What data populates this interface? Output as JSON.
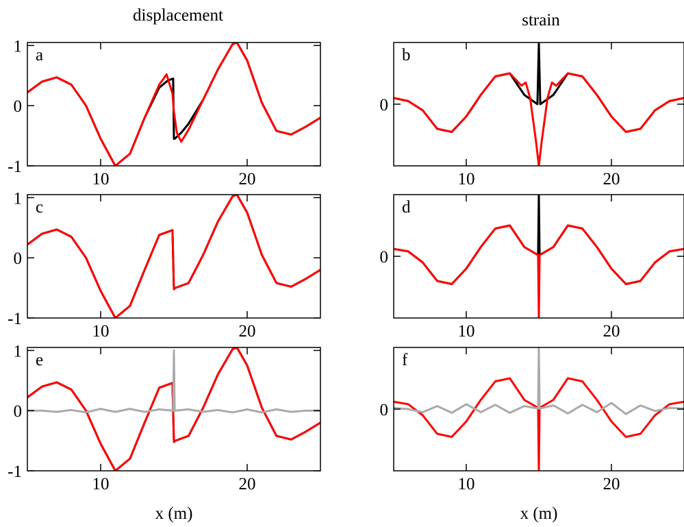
{
  "column_titles": {
    "left": "displacement",
    "right": "strain"
  },
  "colors": {
    "primary": "#000000",
    "comparison": "#ff0000",
    "reference": "#aaaaaa"
  },
  "chart_data": [
    {
      "id": "a",
      "type": "line",
      "panel_label": "a",
      "xlim": [
        5,
        25
      ],
      "ylim": [
        -1,
        1.05
      ],
      "xticks": [
        "10",
        "20"
      ],
      "yticks": [
        "1",
        "0",
        "-1"
      ],
      "xlabel": "",
      "series": [
        {
          "color": "#000000",
          "x": [
            5,
            6,
            7,
            8,
            9,
            10,
            11,
            12,
            13,
            14,
            14.6,
            14.95,
            15.0,
            15.05,
            15.5,
            16,
            17,
            18,
            19,
            19.3,
            20,
            21,
            22,
            23,
            24,
            25
          ],
          "y": [
            0.22,
            0.4,
            0.47,
            0.35,
            0.0,
            -0.55,
            -1.0,
            -0.8,
            -0.2,
            0.3,
            0.42,
            0.45,
            -0.55,
            -0.55,
            -0.45,
            -0.3,
            0.1,
            0.6,
            1.02,
            1.05,
            0.75,
            0.05,
            -0.42,
            -0.48,
            -0.35,
            -0.2
          ]
        },
        {
          "color": "#ff0000",
          "x": [
            5,
            6,
            7,
            8,
            9,
            10,
            11,
            12,
            13,
            14,
            14.5,
            14.9,
            15.0,
            15.2,
            15.5,
            16,
            17,
            18,
            19,
            19.3,
            20,
            21,
            22,
            23,
            24,
            25
          ],
          "y": [
            0.22,
            0.4,
            0.47,
            0.35,
            0.0,
            -0.55,
            -1.0,
            -0.8,
            -0.2,
            0.35,
            0.52,
            0.2,
            -0.1,
            -0.45,
            -0.6,
            -0.4,
            0.1,
            0.6,
            1.02,
            1.05,
            0.75,
            0.05,
            -0.42,
            -0.48,
            -0.35,
            -0.2
          ]
        }
      ]
    },
    {
      "id": "b",
      "type": "line",
      "panel_label": "b",
      "xlim": [
        5,
        25
      ],
      "ylim": [
        -1,
        1
      ],
      "xticks": [
        "10",
        "20"
      ],
      "yticks": [
        "0"
      ],
      "xlabel": "",
      "series": [
        {
          "color": "#000000",
          "x": [
            5,
            6,
            7,
            8,
            9,
            10,
            11,
            12,
            13,
            14,
            14.9,
            15.0,
            15.1,
            16,
            17,
            18,
            19,
            20,
            21,
            22,
            23,
            24,
            25
          ],
          "y": [
            0.1,
            0.05,
            -0.1,
            -0.4,
            -0.45,
            -0.2,
            0.15,
            0.45,
            0.5,
            0.15,
            0.0,
            1.0,
            0.0,
            0.15,
            0.5,
            0.45,
            0.15,
            -0.2,
            -0.45,
            -0.4,
            -0.1,
            0.05,
            0.1
          ]
        },
        {
          "color": "#ff0000",
          "x": [
            5,
            6,
            7,
            8,
            9,
            10,
            11,
            12,
            13,
            13.8,
            14.1,
            14.4,
            14.8,
            15.0,
            15.2,
            15.6,
            15.9,
            16.2,
            17,
            18,
            19,
            20,
            21,
            22,
            23,
            24,
            25
          ],
          "y": [
            0.1,
            0.05,
            -0.1,
            -0.4,
            -0.45,
            -0.2,
            0.15,
            0.45,
            0.5,
            0.3,
            0.35,
            0.1,
            -0.6,
            -1.0,
            -0.6,
            0.1,
            0.35,
            0.3,
            0.5,
            0.45,
            0.15,
            -0.2,
            -0.45,
            -0.4,
            -0.1,
            0.05,
            0.1
          ]
        }
      ]
    },
    {
      "id": "c",
      "type": "line",
      "panel_label": "c",
      "xlim": [
        5,
        25
      ],
      "ylim": [
        -1,
        1.05
      ],
      "xticks": [
        "10",
        "20"
      ],
      "yticks": [
        "1",
        "0",
        "-1"
      ],
      "xlabel": "",
      "series": [
        {
          "color": "#000000",
          "x": [
            5,
            6,
            7,
            8,
            9,
            10,
            11,
            12,
            13,
            14,
            14.9,
            15.0,
            15.1,
            16,
            17,
            18,
            19,
            19.3,
            20,
            21,
            22,
            23,
            24,
            25
          ],
          "y": [
            0.22,
            0.4,
            0.47,
            0.35,
            0.0,
            -0.55,
            -1.0,
            -0.8,
            -0.2,
            0.38,
            0.46,
            -0.52,
            -0.5,
            -0.42,
            0.05,
            0.6,
            1.02,
            1.05,
            0.75,
            0.05,
            -0.42,
            -0.48,
            -0.35,
            -0.2
          ]
        },
        {
          "color": "#ff0000",
          "x": [
            5,
            6,
            7,
            8,
            9,
            10,
            11,
            12,
            13,
            14,
            14.9,
            15.0,
            15.1,
            16,
            17,
            18,
            19,
            19.3,
            20,
            21,
            22,
            23,
            24,
            25
          ],
          "y": [
            0.22,
            0.4,
            0.47,
            0.35,
            0.0,
            -0.55,
            -1.0,
            -0.8,
            -0.2,
            0.38,
            0.46,
            -0.52,
            -0.5,
            -0.42,
            0.05,
            0.6,
            1.02,
            1.05,
            0.75,
            0.05,
            -0.42,
            -0.48,
            -0.35,
            -0.2
          ]
        }
      ]
    },
    {
      "id": "d",
      "type": "line",
      "panel_label": "d",
      "xlim": [
        5,
        25
      ],
      "ylim": [
        -1,
        1
      ],
      "xticks": [
        "10",
        "20"
      ],
      "yticks": [
        "0"
      ],
      "xlabel": "",
      "series": [
        {
          "color": "#000000",
          "x": [
            5,
            6,
            7,
            8,
            9,
            10,
            11,
            12,
            13,
            14,
            14.95,
            15.0,
            15.05,
            16,
            17,
            18,
            19,
            20,
            21,
            22,
            23,
            24,
            25
          ],
          "y": [
            0.12,
            0.08,
            -0.1,
            -0.4,
            -0.45,
            -0.2,
            0.15,
            0.45,
            0.5,
            0.15,
            0.02,
            1.0,
            0.02,
            0.15,
            0.5,
            0.45,
            0.15,
            -0.2,
            -0.45,
            -0.4,
            -0.1,
            0.08,
            0.12
          ]
        },
        {
          "color": "#ff0000",
          "x": [
            5,
            6,
            7,
            8,
            9,
            10,
            11,
            12,
            13,
            14,
            14.95,
            15.0,
            15.05,
            16,
            17,
            18,
            19,
            20,
            21,
            22,
            23,
            24,
            25
          ],
          "y": [
            0.12,
            0.08,
            -0.1,
            -0.4,
            -0.45,
            -0.2,
            0.15,
            0.45,
            0.5,
            0.15,
            0.02,
            -1.0,
            0.02,
            0.15,
            0.5,
            0.45,
            0.15,
            -0.2,
            -0.45,
            -0.4,
            -0.1,
            0.08,
            0.12
          ]
        }
      ]
    },
    {
      "id": "e",
      "type": "line",
      "panel_label": "e",
      "xlim": [
        5,
        25
      ],
      "ylim": [
        -1,
        1.05
      ],
      "xticks": [
        "10",
        "20"
      ],
      "yticks": [
        "1",
        "0",
        "-1"
      ],
      "xlabel": "x (m)",
      "series": [
        {
          "color": "#000000",
          "x": [
            5,
            6,
            7,
            8,
            9,
            10,
            11,
            12,
            13,
            14,
            14.9,
            15.0,
            15.1,
            16,
            17,
            18,
            19,
            19.3,
            20,
            21,
            22,
            23,
            24,
            25
          ],
          "y": [
            0.22,
            0.4,
            0.47,
            0.35,
            0.0,
            -0.55,
            -1.0,
            -0.8,
            -0.2,
            0.38,
            0.46,
            -0.52,
            -0.5,
            -0.42,
            0.05,
            0.6,
            1.02,
            1.05,
            0.75,
            0.05,
            -0.42,
            -0.48,
            -0.35,
            -0.2
          ]
        },
        {
          "color": "#ff0000",
          "x": [
            5,
            6,
            7,
            8,
            9,
            10,
            11,
            12,
            13,
            14,
            14.9,
            15.0,
            15.1,
            16,
            17,
            18,
            19,
            19.3,
            20,
            21,
            22,
            23,
            24,
            25
          ],
          "y": [
            0.22,
            0.4,
            0.47,
            0.35,
            0.0,
            -0.55,
            -1.0,
            -0.8,
            -0.2,
            0.38,
            0.46,
            -0.52,
            -0.5,
            -0.42,
            0.05,
            0.6,
            1.02,
            1.05,
            0.75,
            0.05,
            -0.42,
            -0.48,
            -0.35,
            -0.2
          ]
        },
        {
          "color": "#aaaaaa",
          "x": [
            5,
            6,
            7,
            8,
            9,
            10,
            11,
            12,
            13,
            14,
            14.95,
            15.0,
            15.05,
            16,
            17,
            18,
            19,
            20,
            21,
            22,
            23,
            24,
            25
          ],
          "y": [
            0.0,
            0.0,
            -0.02,
            0.01,
            -0.03,
            0.03,
            -0.02,
            0.03,
            -0.02,
            0.02,
            0.0,
            1.0,
            0.0,
            0.02,
            -0.02,
            0.01,
            -0.03,
            0.02,
            -0.03,
            0.02,
            -0.02,
            0.0,
            0.0
          ]
        }
      ]
    },
    {
      "id": "f",
      "type": "line",
      "panel_label": "f",
      "xlim": [
        5,
        25
      ],
      "ylim": [
        -1,
        1
      ],
      "xticks": [
        "10",
        "20"
      ],
      "yticks": [
        "0"
      ],
      "xlabel": "x (m)",
      "series": [
        {
          "color": "#ff0000",
          "x": [
            5,
            6,
            7,
            8,
            9,
            10,
            11,
            12,
            13,
            14,
            14.95,
            15.0,
            15.05,
            16,
            17,
            18,
            19,
            20,
            21,
            22,
            23,
            24,
            25
          ],
          "y": [
            0.12,
            0.08,
            -0.1,
            -0.4,
            -0.45,
            -0.2,
            0.15,
            0.45,
            0.5,
            0.15,
            0.02,
            -1.0,
            0.02,
            0.15,
            0.5,
            0.45,
            0.15,
            -0.2,
            -0.45,
            -0.4,
            -0.1,
            0.08,
            0.12
          ]
        },
        {
          "color": "#aaaaaa",
          "x": [
            5,
            6,
            7,
            8,
            9,
            10,
            11,
            12,
            13,
            14,
            14.95,
            15.0,
            15.05,
            16,
            17,
            18,
            19,
            20,
            21,
            22,
            23,
            24,
            25
          ],
          "y": [
            0.02,
            0.0,
            -0.05,
            0.05,
            -0.06,
            0.08,
            -0.05,
            0.07,
            -0.06,
            0.05,
            0.01,
            1.0,
            0.01,
            0.06,
            -0.07,
            0.07,
            -0.05,
            0.1,
            -0.08,
            0.06,
            -0.03,
            0.02,
            0.01
          ]
        }
      ]
    }
  ]
}
